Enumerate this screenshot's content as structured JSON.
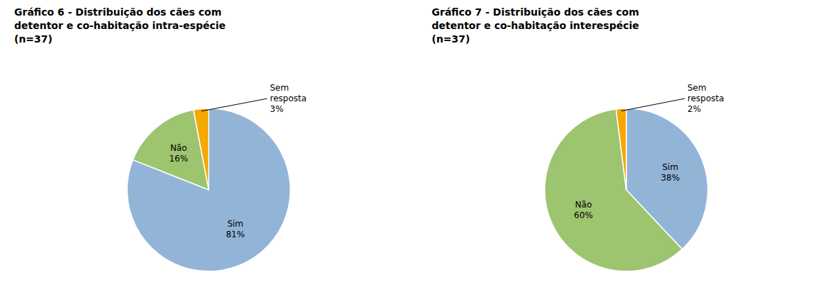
{
  "chart_data": [
    {
      "type": "pie",
      "title": "Gráfico 6 - Distribuição dos cães com\ndetentor e co-habitação intra-espécie\n(n=37)",
      "categories": [
        "Sim",
        "Não",
        "Sem\nresposta"
      ],
      "values": [
        81,
        16,
        3
      ],
      "value_labels": [
        "81%",
        "16%",
        "3%"
      ],
      "colors": [
        "#92b4d7",
        "#9dc46e",
        "#f5a800"
      ],
      "data_labels": true
    },
    {
      "type": "pie",
      "title": "Gráfico 7 - Distribuição dos cães com\ndetentor e co-habitação interespécie\n(n=37)",
      "categories": [
        "Sim",
        "Não",
        "Sem\nresposta"
      ],
      "values": [
        38,
        60,
        2
      ],
      "value_labels": [
        "38%",
        "60%",
        "2%"
      ],
      "colors": [
        "#92b4d7",
        "#9dc46e",
        "#f5a800"
      ],
      "data_labels": true
    }
  ]
}
